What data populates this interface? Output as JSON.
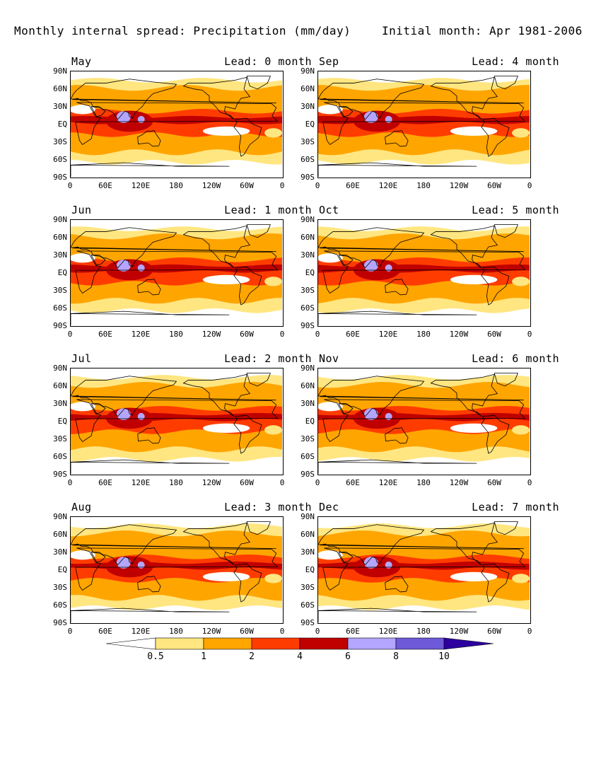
{
  "header": {
    "title": "Monthly internal spread: Precipitation (mm/day)",
    "subtitle": "Initial month: Apr 1981-2006"
  },
  "lat_labels": [
    "90N",
    "60N",
    "30N",
    "EQ",
    "30S",
    "60S",
    "90S"
  ],
  "lon_labels": [
    "0",
    "60E",
    "120E",
    "180",
    "120W",
    "60W",
    "0"
  ],
  "panels": [
    {
      "month": "May",
      "lead": "Lead: 0 month"
    },
    {
      "month": "Sep",
      "lead": "Lead: 4 month"
    },
    {
      "month": "Jun",
      "lead": "Lead: 1 month"
    },
    {
      "month": "Oct",
      "lead": "Lead: 5 month"
    },
    {
      "month": "Jul",
      "lead": "Lead: 2 month"
    },
    {
      "month": "Nov",
      "lead": "Lead: 6 month"
    },
    {
      "month": "Aug",
      "lead": "Lead: 3 month"
    },
    {
      "month": "Dec",
      "lead": "Lead: 7 month"
    }
  ],
  "colorbar": {
    "labels": [
      "0.5",
      "1",
      "2",
      "4",
      "6",
      "8",
      "10"
    ],
    "colors": [
      "#ffffff",
      "#ffe680",
      "#ffa500",
      "#ff3c00",
      "#c00000",
      "#b4a5ff",
      "#6e5ad8",
      "#2d00a0"
    ]
  }
}
